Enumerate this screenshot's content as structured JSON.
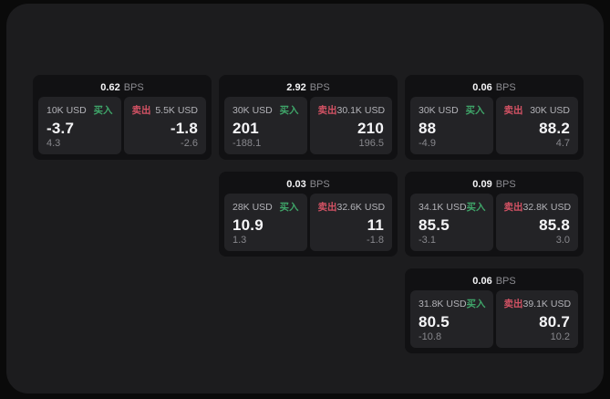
{
  "labels": {
    "bps_unit": "BPS",
    "buy": "买入",
    "sell": "卖出"
  },
  "colors": {
    "buy_green": "#3fa569",
    "sell_red": "#d35264",
    "window_bg": "#1c1c1e",
    "card_bg": "#111113",
    "panel_bg": "#232326"
  },
  "cards": [
    {
      "bps": "0.62",
      "buy": {
        "size": "10K USD",
        "price": "-3.7",
        "change": "4.3"
      },
      "sell": {
        "size": "5.5K USD",
        "price": "-1.8",
        "change": "-2.6"
      }
    },
    {
      "bps": "2.92",
      "buy": {
        "size": "30K USD",
        "price": "201",
        "change": "-188.1"
      },
      "sell": {
        "size": "30.1K USD",
        "price": "210",
        "change": "196.5"
      }
    },
    {
      "bps": "0.06",
      "buy": {
        "size": "30K USD",
        "price": "88",
        "change": "-4.9"
      },
      "sell": {
        "size": "30K USD",
        "price": "88.2",
        "change": "4.7"
      }
    },
    {
      "bps": "0.03",
      "buy": {
        "size": "28K USD",
        "price": "10.9",
        "change": "1.3"
      },
      "sell": {
        "size": "32.6K USD",
        "price": "11",
        "change": "-1.8"
      }
    },
    {
      "bps": "0.09",
      "buy": {
        "size": "34.1K USD",
        "price": "85.5",
        "change": "-3.1"
      },
      "sell": {
        "size": "32.8K USD",
        "price": "85.8",
        "change": "3.0"
      }
    },
    {
      "bps": "0.06",
      "buy": {
        "size": "31.8K USD",
        "price": "80.5",
        "change": "-10.8"
      },
      "sell": {
        "size": "39.1K USD",
        "price": "80.7",
        "change": "10.2"
      }
    }
  ]
}
